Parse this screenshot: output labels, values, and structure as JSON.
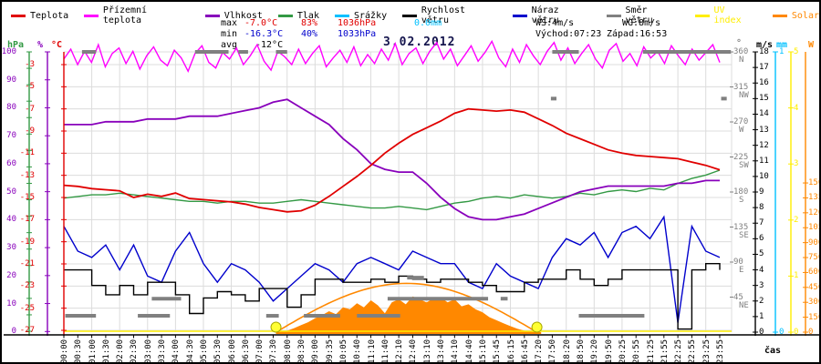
{
  "palette": {
    "red": "#e00000",
    "magenta": "#ff00ff",
    "purple": "#8800bb",
    "green": "#339944",
    "cyan": "#00c0ff",
    "black": "#000000",
    "navy": "#0000cc",
    "gray": "#808080",
    "yellow": "#ffee00",
    "orange": "#ff8800",
    "title": "#15154d",
    "grid": "#dcdcdc",
    "min_blue": "#0000cc"
  },
  "header": {
    "title": "3.02.2012",
    "legend": [
      {
        "label": "Teplota",
        "color": "#e00000",
        "label_color": "#000000"
      },
      {
        "label": "Přízemní teplota",
        "color": "#ff00ff",
        "label_color": "#000000"
      },
      {
        "label": "Vlhkost",
        "color": "#8800bb",
        "label_color": "#000000"
      },
      {
        "label": "Tlak",
        "color": "#339944",
        "label_color": "#000000"
      },
      {
        "label": "Srážky",
        "color": "#00c0ff",
        "label_color": "#000000"
      },
      {
        "label": "Rychlost větru",
        "color": "#000000",
        "label_color": "#000000"
      },
      {
        "label": "Náraz větru",
        "color": "#0000cc",
        "label_color": "#000000"
      },
      {
        "label": "Směr větru",
        "color": "#808080",
        "label_color": "#000000"
      },
      {
        "label": "UV index",
        "color": "#ffee00",
        "label_color": "#ffee00"
      },
      {
        "label": "Solar",
        "color": "#ff8800",
        "label_color": "#ff8800"
      }
    ],
    "stats": {
      "max_label": "max",
      "max_temp": "-7.0°C",
      "max_hum": "83%",
      "max_press": "1036hPa",
      "rain": "0.0mm",
      "ws": "WS:4m/s",
      "wg": "WG:8m/s",
      "min_label": "min",
      "min_temp": "-16.3°C",
      "min_hum": "40%",
      "min_press": "1033hPa",
      "sunrise": "Východ:07:23",
      "sunset": "Západ:16:53",
      "avg_label": "avg",
      "avg_temp": "-12°C"
    }
  },
  "chart_data": {
    "type": "line",
    "title": "3.02.2012",
    "x_axis_label": "čas",
    "x_tick_labels": [
      "00:00",
      "00:30",
      "01:00",
      "01:30",
      "02:00",
      "02:30",
      "03:00",
      "03:30",
      "04:00",
      "04:30",
      "05:00",
      "05:30",
      "06:00",
      "06:30",
      "07:00",
      "07:30",
      "08:00",
      "08:30",
      "09:00",
      "09:35",
      "10:05",
      "10:40",
      "11:10",
      "11:40",
      "12:10",
      "12:40",
      "13:10",
      "13:40",
      "14:10",
      "14:40",
      "15:10",
      "15:45",
      "16:15",
      "16:45",
      "17:20",
      "17:50",
      "18:20",
      "18:50",
      "19:20",
      "19:50",
      "20:25",
      "20:55",
      "21:25",
      "21:55",
      "22:25",
      "22:55",
      "23:25",
      "23:55"
    ],
    "axes": {
      "hpa": {
        "unit": "hPa",
        "color": "#339944",
        "min": 1026,
        "max": 1043,
        "step": 1
      },
      "humidity": {
        "unit": "%",
        "color": "#8800bb",
        "min": 0,
        "max": 100,
        "step": 10
      },
      "temp": {
        "unit": "°C",
        "color": "#e00000",
        "min": -27,
        "max": -3,
        "step": 2
      },
      "wind_dir": {
        "unit": "°",
        "color": "#808080",
        "min": 0,
        "max": 360,
        "step": 45,
        "compass": {
          "360": "N",
          "315": "NW",
          "270": "W",
          "225": "SW",
          "180": "S",
          "135": "SE",
          "90": "E",
          "45": "NE"
        }
      },
      "wind": {
        "unit": "m/s",
        "color": "#000000",
        "min": 0,
        "max": 18,
        "step": 1
      },
      "rain": {
        "unit": "mm",
        "color": "#00c0ff",
        "min": 0,
        "max": 1,
        "step": 1
      },
      "uv": {
        "unit": "",
        "color": "#ffee00",
        "min": 0,
        "max": 5,
        "step": 1
      },
      "solar": {
        "unit": "W",
        "color": "#ff8800",
        "min": 0,
        "max": 1500,
        "step": 150,
        "label_from": 150
      }
    },
    "series": [
      {
        "name": "Tlak",
        "axis": "hpa",
        "color": "#339944",
        "values": [
          1034.1,
          1034.2,
          1034.3,
          1034.3,
          1034.4,
          1034.3,
          1034.2,
          1034.1,
          1034.0,
          1033.9,
          1033.9,
          1033.8,
          1033.9,
          1033.9,
          1033.8,
          1033.8,
          1033.9,
          1034.0,
          1033.9,
          1033.8,
          1033.7,
          1033.6,
          1033.5,
          1033.5,
          1033.6,
          1033.5,
          1033.4,
          1033.6,
          1033.8,
          1033.9,
          1034.1,
          1034.2,
          1034.1,
          1034.3,
          1034.2,
          1034.1,
          1034.2,
          1034.4,
          1034.3,
          1034.5,
          1034.6,
          1034.5,
          1034.7,
          1034.6,
          1035.0,
          1035.3,
          1035.5,
          1035.8
        ]
      },
      {
        "name": "Vlhkost",
        "axis": "humidity",
        "color": "#8800bb",
        "values": [
          74,
          74,
          74,
          75,
          75,
          75,
          76,
          76,
          76,
          77,
          77,
          77,
          78,
          79,
          80,
          82,
          83,
          80,
          77,
          74,
          69,
          65,
          60,
          58,
          57,
          57,
          53,
          48,
          44,
          41,
          40,
          40,
          41,
          42,
          44,
          46,
          48,
          50,
          51,
          52,
          52,
          52,
          52,
          52,
          53,
          53,
          54,
          54
        ]
      },
      {
        "name": "Náraz větru",
        "axis": "wind",
        "color": "#0000cc",
        "values": [
          6.8,
          5.2,
          4.8,
          5.6,
          4.0,
          5.6,
          3.6,
          3.2,
          5.2,
          6.4,
          4.4,
          3.2,
          4.4,
          4.0,
          3.2,
          2.0,
          2.8,
          3.6,
          4.4,
          4.0,
          3.2,
          4.4,
          4.8,
          4.4,
          4.0,
          5.2,
          4.8,
          4.4,
          4.4,
          3.2,
          2.8,
          4.4,
          3.6,
          3.2,
          2.8,
          4.8,
          6.0,
          5.6,
          6.4,
          4.8,
          6.4,
          6.8,
          6.0,
          7.4,
          0.6,
          6.8,
          5.2,
          4.8
        ]
      },
      {
        "name": "Rychlost větru",
        "axis": "wind",
        "color": "#000000",
        "step": true,
        "values": [
          4.0,
          4.0,
          3.0,
          2.4,
          3.0,
          2.4,
          3.2,
          3.2,
          2.4,
          1.2,
          2.2,
          2.6,
          2.4,
          2.0,
          2.8,
          2.8,
          1.6,
          2.4,
          3.4,
          3.4,
          3.2,
          3.2,
          3.4,
          3.2,
          3.6,
          3.4,
          3.2,
          3.4,
          3.4,
          3.2,
          3.0,
          2.6,
          2.6,
          3.2,
          3.4,
          3.4,
          4.0,
          3.4,
          3.0,
          3.4,
          4.0,
          4.0,
          4.0,
          4.0,
          0.2,
          4.0,
          4.4,
          4.0
        ]
      },
      {
        "name": "Teplota",
        "axis": "temp",
        "color": "#e00000",
        "values": [
          -13.9,
          -14.0,
          -14.2,
          -14.3,
          -14.4,
          -15.0,
          -14.7,
          -14.9,
          -14.6,
          -15.1,
          -15.2,
          -15.3,
          -15.4,
          -15.6,
          -15.9,
          -16.1,
          -16.3,
          -16.2,
          -15.7,
          -14.9,
          -14.0,
          -13.1,
          -12.1,
          -11.0,
          -10.1,
          -9.3,
          -8.7,
          -8.1,
          -7.4,
          -7.0,
          -7.1,
          -7.2,
          -7.1,
          -7.3,
          -7.9,
          -8.5,
          -9.2,
          -9.7,
          -10.2,
          -10.7,
          -11.0,
          -11.2,
          -11.3,
          -11.4,
          -11.5,
          -11.8,
          -12.1,
          -12.5
        ]
      },
      {
        "name": "Přízemní teplota",
        "axis": "temp",
        "color": "#ff00ff",
        "per_half_tick": true,
        "values": [
          -2.5,
          -1.6,
          -3.0,
          -1.8,
          -2.8,
          -1.2,
          -3.2,
          -2.0,
          -1.5,
          -2.9,
          -1.8,
          -3.4,
          -2.2,
          -1.4,
          -2.6,
          -3.1,
          -1.7,
          -2.4,
          -3.6,
          -2.0,
          -1.3,
          -2.8,
          -3.3,
          -1.9,
          -2.5,
          -1.5,
          -3.0,
          -2.2,
          -1.2,
          -2.7,
          -3.5,
          -1.8,
          -2.3,
          -3.0,
          -1.6,
          -2.9,
          -2.0,
          -1.3,
          -3.2,
          -2.4,
          -1.7,
          -2.8,
          -1.4,
          -3.1,
          -2.1,
          -2.9,
          -1.6,
          -2.6,
          -1.1,
          -3.0,
          -2.0,
          -1.5,
          -2.9,
          -1.8,
          -1.0,
          -2.5,
          -1.6,
          -3.1,
          -2.2,
          -1.3,
          -2.7,
          -1.9,
          -0.9,
          -2.4,
          -3.2,
          -1.6,
          -2.8,
          -1.2,
          -2.2,
          -3.0,
          -1.8,
          -1.0,
          -2.6,
          -1.5,
          -2.9,
          -2.0,
          -1.2,
          -2.5,
          -3.3,
          -1.7,
          -1.1,
          -2.7,
          -2.0,
          -3.1,
          -1.4,
          -2.4,
          -1.8,
          -2.9,
          -1.3,
          -2.2,
          -3.0,
          -1.6,
          -2.6,
          -1.9,
          -1.2,
          -2.8
        ]
      },
      {
        "name": "Srážky",
        "axis": "rain",
        "color": "#00c0ff",
        "constant": 0
      },
      {
        "name": "UV index",
        "axis": "uv",
        "color": "#ffee00",
        "constant": 0
      }
    ],
    "solar_actual_points": [
      [
        15.2,
        0
      ],
      [
        15.5,
        5
      ],
      [
        16,
        15
      ],
      [
        16.5,
        40
      ],
      [
        17,
        70
      ],
      [
        17.5,
        100
      ],
      [
        18,
        140
      ],
      [
        18.5,
        170
      ],
      [
        19,
        210
      ],
      [
        19.5,
        180
      ],
      [
        20,
        250
      ],
      [
        20.5,
        230
      ],
      [
        21,
        290
      ],
      [
        21.5,
        250
      ],
      [
        22,
        320
      ],
      [
        22.5,
        270
      ],
      [
        23,
        190
      ],
      [
        23.5,
        300
      ],
      [
        24,
        330
      ],
      [
        24.5,
        280
      ],
      [
        25,
        360
      ],
      [
        25.5,
        330
      ],
      [
        26,
        300
      ],
      [
        26.5,
        340
      ],
      [
        27,
        350
      ],
      [
        27.5,
        300
      ],
      [
        28,
        330
      ],
      [
        28.5,
        260
      ],
      [
        29,
        280
      ],
      [
        29.5,
        230
      ],
      [
        30,
        200
      ],
      [
        30.5,
        150
      ],
      [
        31,
        120
      ],
      [
        31.5,
        90
      ],
      [
        32,
        60
      ],
      [
        32.5,
        35
      ],
      [
        33,
        15
      ],
      [
        33.5,
        5
      ],
      [
        34,
        0
      ]
    ],
    "solar_theoretical": {
      "start_i": 15.2,
      "end_i": 33.9,
      "peak_w": 490
    },
    "wind_direction_dashes": [
      {
        "i0": 0.1,
        "i1": 2.3,
        "deg": 21
      },
      {
        "i0": 1.3,
        "i1": 2.3,
        "deg": 360
      },
      {
        "i0": 5.3,
        "i1": 7.6,
        "deg": 21
      },
      {
        "i0": 6.3,
        "i1": 8.4,
        "deg": 43
      },
      {
        "i0": 9.4,
        "i1": 11.8,
        "deg": 360
      },
      {
        "i0": 12.5,
        "i1": 13.2,
        "deg": 360
      },
      {
        "i0": 14.5,
        "i1": 15.4,
        "deg": 21
      },
      {
        "i0": 15.2,
        "i1": 16.0,
        "deg": 360
      },
      {
        "i0": 17.2,
        "i1": 19.8,
        "deg": 21
      },
      {
        "i0": 21.0,
        "i1": 24.1,
        "deg": 21
      },
      {
        "i0": 23.2,
        "i1": 30.4,
        "deg": 43
      },
      {
        "i0": 24.6,
        "i1": 25.8,
        "deg": 70
      },
      {
        "i0": 31.3,
        "i1": 31.8,
        "deg": 43
      },
      {
        "i0": 34.9,
        "i1": 35.3,
        "deg": 300
      },
      {
        "i0": 35.0,
        "i1": 36.9,
        "deg": 360
      },
      {
        "i0": 36.9,
        "i1": 41.6,
        "deg": 21
      },
      {
        "i0": 41.5,
        "i1": 47.8,
        "deg": 360
      },
      {
        "i0": 47.1,
        "i1": 47.5,
        "deg": 300
      }
    ],
    "sun_markers": [
      {
        "i": 15.2
      },
      {
        "i": 33.9
      }
    ]
  }
}
